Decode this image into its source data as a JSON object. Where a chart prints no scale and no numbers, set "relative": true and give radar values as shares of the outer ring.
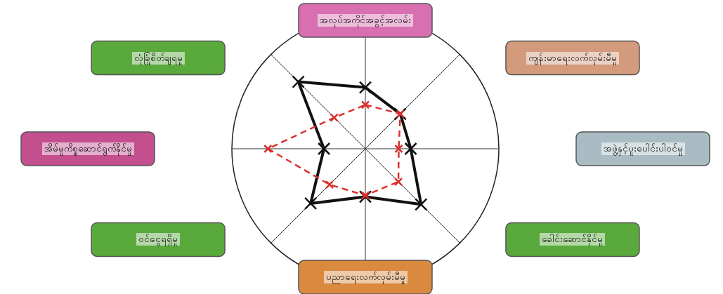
{
  "chart_data": {
    "type": "radar",
    "relative": true,
    "marker": "cross",
    "categories": [
      "အလုပ်အကိုင်အခွင့်အလမ်း",
      "ကျန်းမာရေးလက်လှမ်းမီမှု",
      "အဖွဲ့နှင့်ပူးပေါင်းပါဝင်မှု",
      "ခေါင်းဆောင်နိုင်မှု",
      "ပညာရေးလက်လှမ်းမီမှု",
      "ဝင်ငွေရရှိမှု",
      "အိမ်မှုကိစ္စဆောင်ရွက်နိုင်မှု",
      "လုံခြုံစိတ်ချရမှု"
    ],
    "series": [
      {
        "color": "#111111",
        "line_style": "solid",
        "values": [
          0.46,
          0.37,
          0.34,
          0.59,
          0.36,
          0.58,
          0.31,
          0.71
        ]
      },
      {
        "color": "#d9312f",
        "line_style": "dashed",
        "values": [
          0.33,
          0.37,
          0.25,
          0.35,
          0.35,
          0.38,
          0.73,
          0.33
        ]
      }
    ]
  }
}
